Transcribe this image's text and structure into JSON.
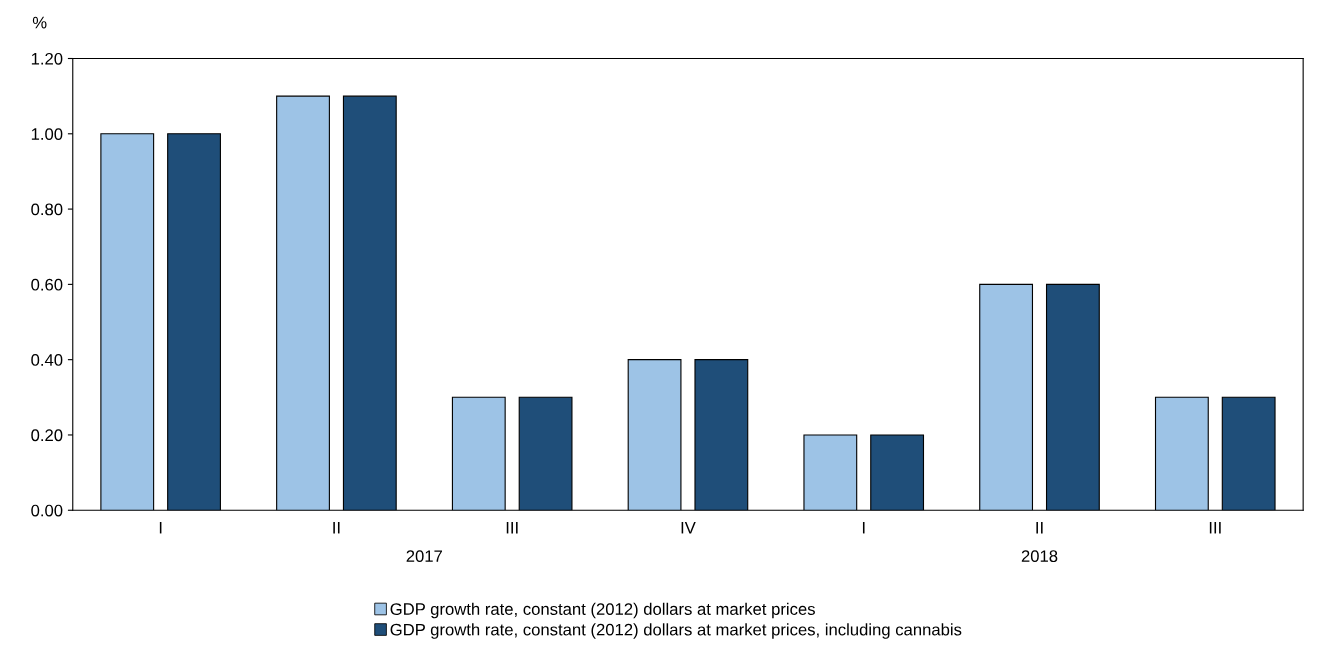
{
  "chart_data": {
    "type": "bar",
    "ylabel": "%",
    "categories": [
      "I",
      "II",
      "III",
      "IV",
      "I",
      "II",
      "III"
    ],
    "series": [
      {
        "name": "GDP growth rate, constant (2012) dollars at market prices",
        "color": "#9dc3e6",
        "values": [
          1.0,
          1.1,
          0.3,
          0.4,
          0.2,
          0.6,
          0.3
        ]
      },
      {
        "name": "GDP growth rate, constant (2012) dollars at market prices, including cannabis",
        "color": "#1f4e79",
        "values": [
          1.0,
          1.1,
          0.3,
          0.4,
          0.2,
          0.6,
          0.3
        ]
      }
    ],
    "ylim": [
      0,
      1.2
    ],
    "yticks": [
      {
        "value": 0,
        "label": "0.00"
      },
      {
        "value": 0.2,
        "label": "0.20"
      },
      {
        "value": 0.4,
        "label": "0.40"
      },
      {
        "value": 0.6,
        "label": "0.60"
      },
      {
        "value": 0.8,
        "label": "0.80"
      },
      {
        "value": 1.0,
        "label": "1.00"
      },
      {
        "value": 1.2,
        "label": "1.20"
      }
    ],
    "annotations": [
      "2017",
      "2018"
    ],
    "grid": false,
    "legend": "bottom"
  }
}
